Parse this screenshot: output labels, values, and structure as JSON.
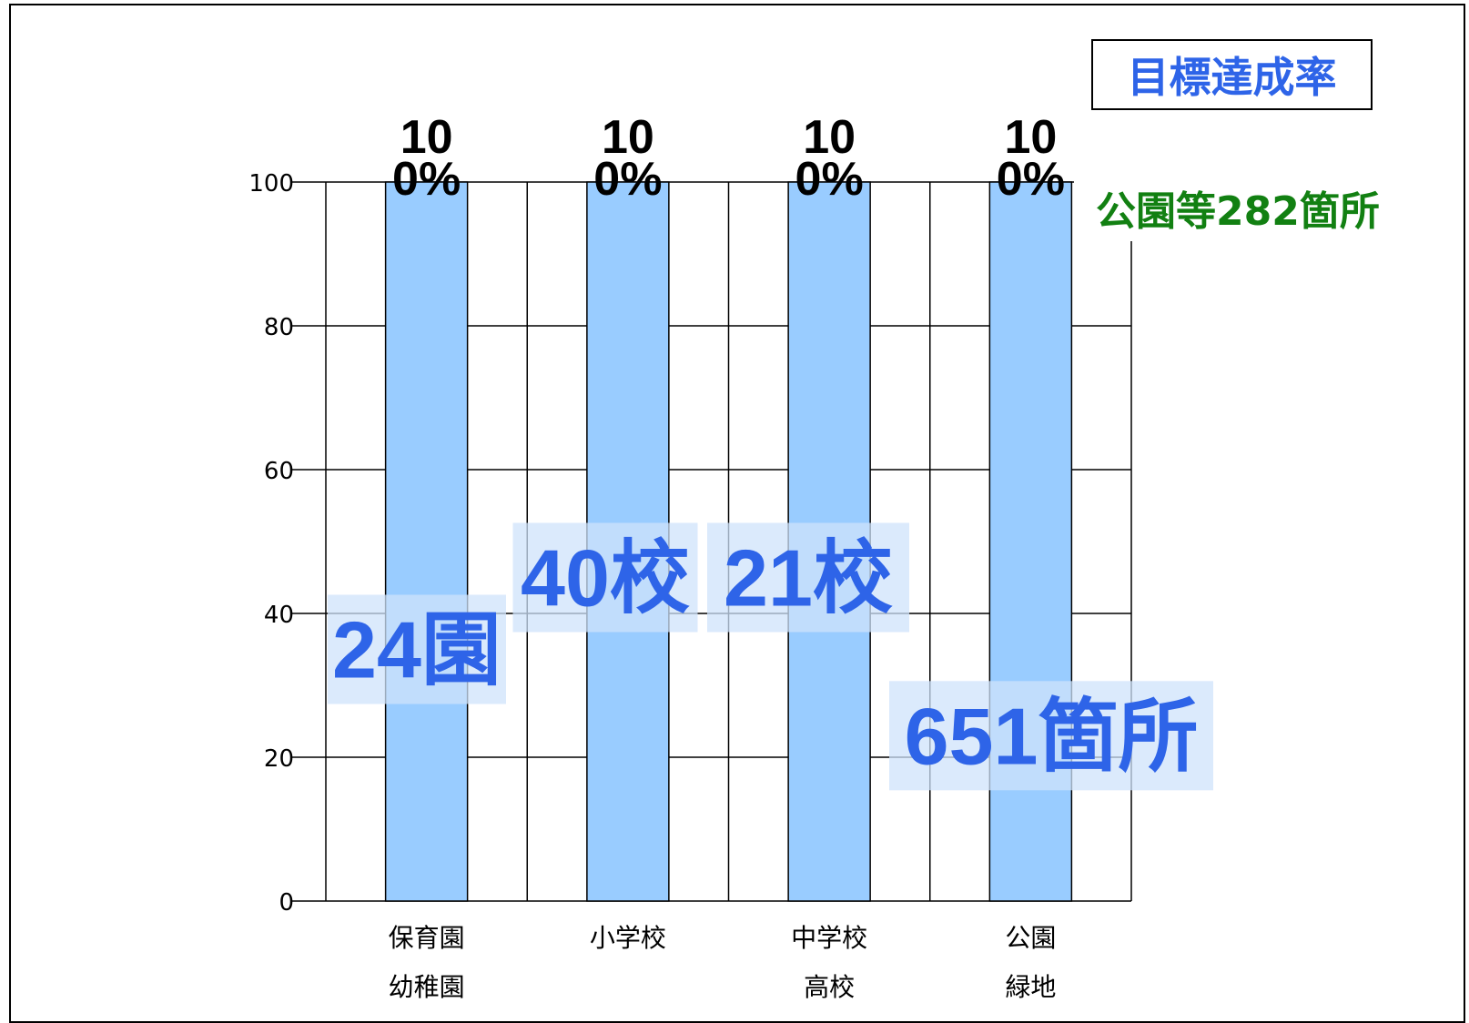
{
  "legend": {
    "label": "目標達成率"
  },
  "note": {
    "text": "公園等282箇所",
    "color": "#128012"
  },
  "colors": {
    "bar": "#99ccff",
    "accent": "#2e64e8",
    "label_bg": "#cfe3fb"
  },
  "chart_data": {
    "type": "bar",
    "ylim": [
      0,
      100
    ],
    "yticks": [
      "0",
      "20",
      "40",
      "60",
      "80",
      "100"
    ],
    "grid": true,
    "legend_position": "top-right",
    "categories": [
      {
        "line1": "保育園",
        "line2": "幼稚園"
      },
      {
        "line1": "小学校",
        "line2": ""
      },
      {
        "line1": "中学校",
        "line2": "高校"
      },
      {
        "line1": "公園",
        "line2": "緑地"
      }
    ],
    "values": [
      100,
      100,
      100,
      100
    ],
    "value_labels": [
      {
        "line1": "10",
        "line2": "0%"
      },
      {
        "line1": "10",
        "line2": "0%"
      },
      {
        "line1": "10",
        "line2": "0%"
      },
      {
        "line1": "10",
        "line2": "0%"
      }
    ],
    "count_labels": [
      "24園",
      "40校",
      "21校",
      "651箇所"
    ],
    "count_label_values": [
      35,
      45,
      45,
      23
    ]
  }
}
